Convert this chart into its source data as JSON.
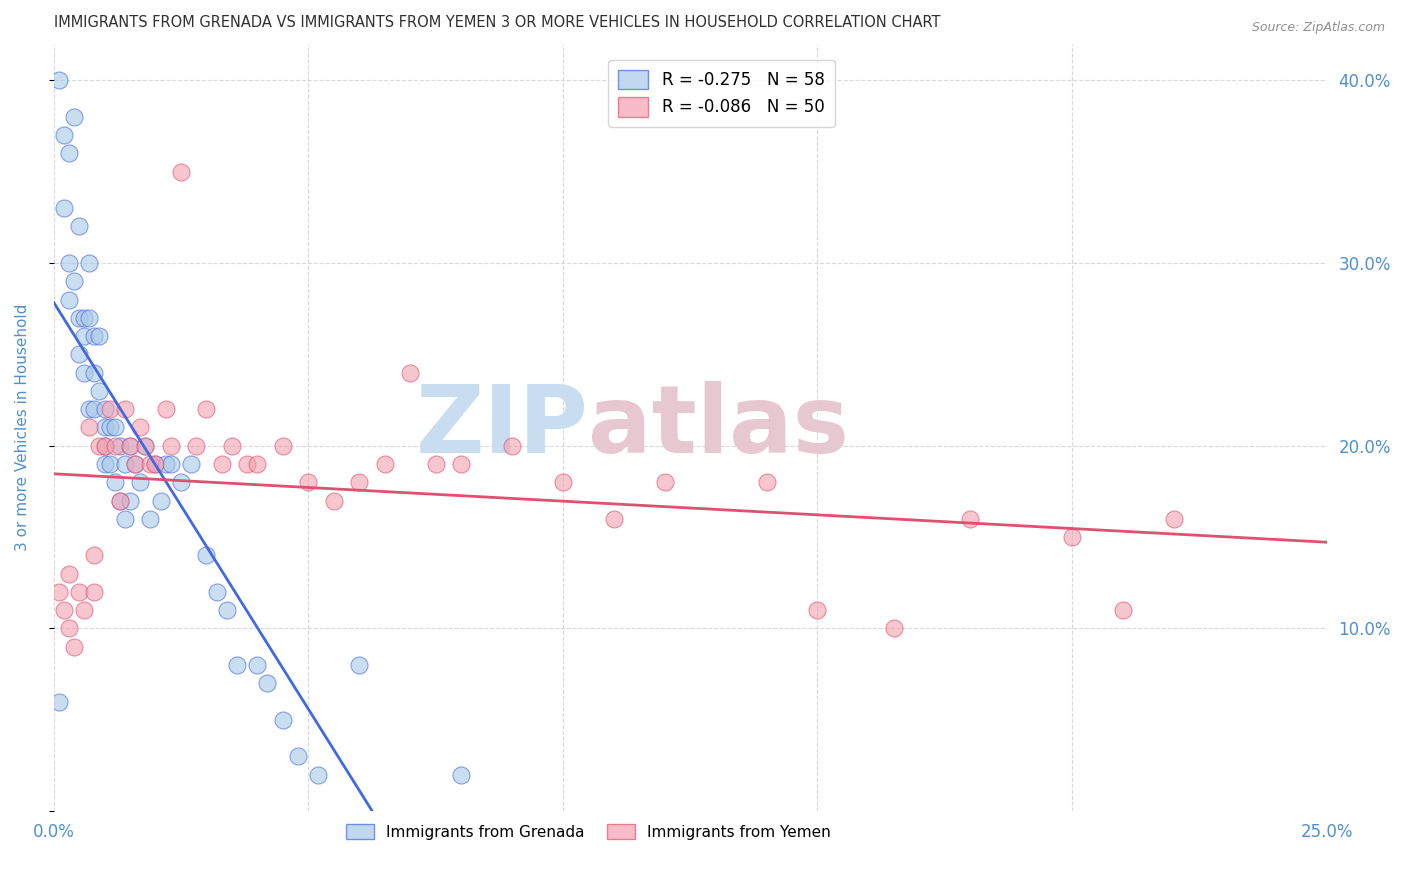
{
  "title": "IMMIGRANTS FROM GRENADA VS IMMIGRANTS FROM YEMEN 3 OR MORE VEHICLES IN HOUSEHOLD CORRELATION CHART",
  "source": "Source: ZipAtlas.com",
  "ylabel": "3 or more Vehicles in Household",
  "xlim": [
    0.0,
    0.25
  ],
  "ylim": [
    0.0,
    0.42
  ],
  "xticks": [
    0.0,
    0.05,
    0.1,
    0.15,
    0.2,
    0.25
  ],
  "yticks": [
    0.0,
    0.1,
    0.2,
    0.3,
    0.4
  ],
  "right_ytick_labels": [
    "40.0%",
    "30.0%",
    "20.0%",
    "10.0%"
  ],
  "right_ytick_values": [
    0.4,
    0.3,
    0.2,
    0.1
  ],
  "grenada_color": "#a8c8e8",
  "yemen_color": "#f4a0b0",
  "grenada_line_color": "#4169e1",
  "yemen_line_color": "#e05070",
  "watermark_zip": "ZIP",
  "watermark_atlas": "atlas",
  "watermark_color_zip": "#c8ddf0",
  "watermark_color_atlas": "#e8c8d0",
  "background_color": "#ffffff",
  "grid_color": "#d0d0d0",
  "title_color": "#303030",
  "axis_label_color": "#5090d0",
  "tick_label_color": "#5090d0",
  "grenada_scatter_x": [
    0.001,
    0.001,
    0.002,
    0.002,
    0.003,
    0.003,
    0.003,
    0.004,
    0.004,
    0.005,
    0.005,
    0.005,
    0.006,
    0.006,
    0.006,
    0.007,
    0.007,
    0.007,
    0.008,
    0.008,
    0.008,
    0.009,
    0.009,
    0.01,
    0.01,
    0.01,
    0.01,
    0.011,
    0.011,
    0.012,
    0.012,
    0.013,
    0.013,
    0.014,
    0.014,
    0.015,
    0.015,
    0.016,
    0.017,
    0.018,
    0.019,
    0.02,
    0.021,
    0.022,
    0.023,
    0.025,
    0.027,
    0.03,
    0.032,
    0.034,
    0.036,
    0.04,
    0.042,
    0.045,
    0.048,
    0.052,
    0.06,
    0.08
  ],
  "grenada_scatter_y": [
    0.06,
    0.4,
    0.37,
    0.33,
    0.36,
    0.3,
    0.28,
    0.38,
    0.29,
    0.32,
    0.27,
    0.25,
    0.27,
    0.26,
    0.24,
    0.3,
    0.27,
    0.22,
    0.26,
    0.24,
    0.22,
    0.26,
    0.23,
    0.22,
    0.21,
    0.2,
    0.19,
    0.21,
    0.19,
    0.21,
    0.18,
    0.2,
    0.17,
    0.19,
    0.16,
    0.2,
    0.17,
    0.19,
    0.18,
    0.2,
    0.16,
    0.19,
    0.17,
    0.19,
    0.19,
    0.18,
    0.19,
    0.14,
    0.12,
    0.11,
    0.08,
    0.08,
    0.07,
    0.05,
    0.03,
    0.02,
    0.08,
    0.02
  ],
  "yemen_scatter_x": [
    0.001,
    0.002,
    0.003,
    0.003,
    0.004,
    0.005,
    0.006,
    0.007,
    0.008,
    0.008,
    0.009,
    0.01,
    0.011,
    0.012,
    0.013,
    0.014,
    0.015,
    0.016,
    0.017,
    0.018,
    0.019,
    0.02,
    0.022,
    0.023,
    0.025,
    0.028,
    0.03,
    0.033,
    0.035,
    0.038,
    0.04,
    0.045,
    0.05,
    0.055,
    0.06,
    0.065,
    0.07,
    0.075,
    0.08,
    0.09,
    0.1,
    0.11,
    0.12,
    0.14,
    0.15,
    0.165,
    0.18,
    0.2,
    0.21,
    0.22
  ],
  "yemen_scatter_y": [
    0.12,
    0.11,
    0.1,
    0.13,
    0.09,
    0.12,
    0.11,
    0.21,
    0.14,
    0.12,
    0.2,
    0.2,
    0.22,
    0.2,
    0.17,
    0.22,
    0.2,
    0.19,
    0.21,
    0.2,
    0.19,
    0.19,
    0.22,
    0.2,
    0.35,
    0.2,
    0.22,
    0.19,
    0.2,
    0.19,
    0.19,
    0.2,
    0.18,
    0.17,
    0.18,
    0.19,
    0.24,
    0.19,
    0.19,
    0.2,
    0.18,
    0.16,
    0.18,
    0.18,
    0.11,
    0.1,
    0.16,
    0.15,
    0.11,
    0.16
  ],
  "grenada_R": -0.275,
  "grenada_N": 58,
  "yemen_R": -0.086,
  "yemen_N": 50
}
